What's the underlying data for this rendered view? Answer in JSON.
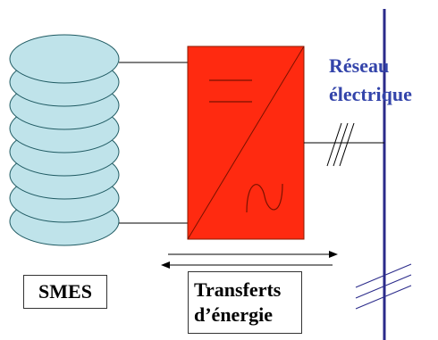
{
  "labels": {
    "smes": "SMES",
    "transfer_line1": "Transferts",
    "transfer_line2": "d’énergie",
    "grid_line1": "Réseau",
    "grid_line2": "électrique"
  },
  "colors": {
    "coil_fill": "#bfe3ea",
    "coil_stroke": "#1f5a62",
    "converter_fill": "#ff2a10",
    "converter_stroke": "#8a1a00",
    "grid_bus": "#2a2a8a",
    "grid_label": "#3344aa",
    "wire": "#000000"
  }
}
